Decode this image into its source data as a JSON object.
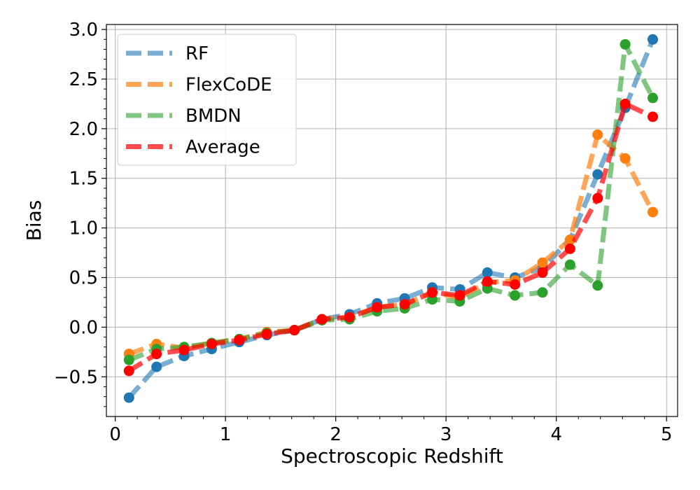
{
  "chart_data": {
    "type": "line",
    "title": "",
    "xlabel": "Spectroscopic Redshift",
    "ylabel": "Bias",
    "xlim": [
      -0.08,
      5.1
    ],
    "ylim": [
      -0.9,
      3.05
    ],
    "xticks": [
      0,
      1,
      2,
      3,
      4,
      5
    ],
    "xtick_labels": [
      "0",
      "1",
      "2",
      "3",
      "4",
      "5"
    ],
    "yticks": [
      -0.5,
      0.0,
      0.5,
      1.0,
      1.5,
      2.0,
      2.5,
      3.0
    ],
    "ytick_labels": [
      "−0.5",
      "0.0",
      "0.5",
      "1.0",
      "1.5",
      "2.0",
      "2.5",
      "3.0"
    ],
    "grid": true,
    "legend_position": "top-left",
    "x": [
      0.125,
      0.375,
      0.625,
      0.875,
      1.125,
      1.375,
      1.625,
      1.875,
      2.125,
      2.375,
      2.625,
      2.875,
      3.125,
      3.375,
      3.625,
      3.875,
      4.125,
      4.375,
      4.625,
      4.875
    ],
    "series": [
      {
        "name": "RF",
        "color": "#1f77b4",
        "values": [
          -0.71,
          -0.4,
          -0.29,
          -0.22,
          -0.15,
          -0.08,
          -0.03,
          0.08,
          0.13,
          0.24,
          0.29,
          0.4,
          0.38,
          0.55,
          0.5,
          0.6,
          0.88,
          1.54,
          2.21,
          2.9
        ]
      },
      {
        "name": "FlexCoDE",
        "color": "#ff7f0e",
        "values": [
          -0.27,
          -0.17,
          -0.21,
          -0.16,
          -0.12,
          -0.05,
          -0.03,
          0.08,
          0.1,
          0.2,
          0.23,
          0.35,
          0.3,
          0.45,
          0.47,
          0.65,
          0.88,
          1.94,
          1.7,
          1.16
        ]
      },
      {
        "name": "BMDN",
        "color": "#2ca02c",
        "values": [
          -0.33,
          -0.22,
          -0.2,
          -0.16,
          -0.12,
          -0.06,
          -0.03,
          0.07,
          0.08,
          0.16,
          0.19,
          0.28,
          0.26,
          0.39,
          0.32,
          0.35,
          0.63,
          0.42,
          2.85,
          2.31
        ]
      },
      {
        "name": "Average",
        "color": "#ff0000",
        "values": [
          -0.44,
          -0.27,
          -0.23,
          -0.17,
          -0.13,
          -0.07,
          -0.03,
          0.08,
          0.1,
          0.2,
          0.23,
          0.35,
          0.32,
          0.46,
          0.43,
          0.55,
          0.79,
          1.3,
          2.25,
          2.12
        ]
      }
    ]
  }
}
